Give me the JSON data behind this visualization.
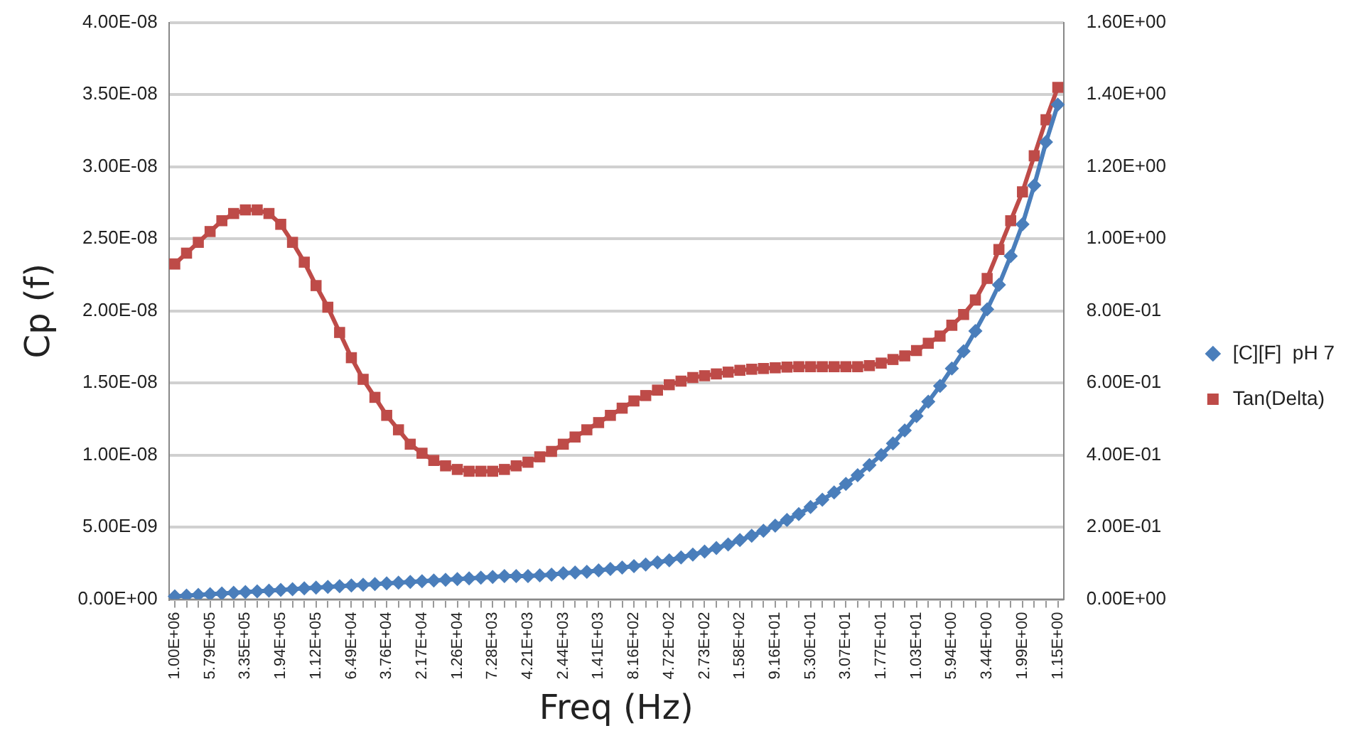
{
  "chart_data": {
    "type": "line",
    "xlabel": "Freq (Hz)",
    "ylabel": "Cp (f)",
    "categories": [
      "1.00E+06",
      null,
      null,
      "5.79E+05",
      null,
      null,
      "3.35E+05",
      null,
      null,
      "1.94E+05",
      null,
      null,
      "1.12E+05",
      null,
      null,
      "6.49E+04",
      null,
      null,
      "3.76E+04",
      null,
      null,
      "2.17E+04",
      null,
      null,
      "1.26E+04",
      null,
      null,
      "7.28E+03",
      null,
      null,
      "4.21E+03",
      null,
      null,
      "2.44E+03",
      null,
      null,
      "1.41E+03",
      null,
      null,
      "8.16E+02",
      null,
      null,
      "4.72E+02",
      null,
      null,
      "2.73E+02",
      null,
      null,
      "1.58E+02",
      null,
      null,
      "9.16E+01",
      null,
      null,
      "5.30E+01",
      null,
      null,
      "3.07E+01",
      null,
      null,
      "1.77E+01",
      null,
      null,
      "1.03E+01",
      null,
      null,
      "5.94E+00",
      null,
      null,
      "3.44E+00",
      null,
      null,
      "1.99E+00",
      null,
      null,
      "1.15E+00"
    ],
    "series": [
      {
        "name": "[C][F]  pH 7",
        "color": "#4a7ebb",
        "marker": "diamond",
        "values": [
          2e-10,
          2.5e-10,
          3e-10,
          3.5e-10,
          4e-10,
          4.5e-10,
          5e-10,
          5.5e-10,
          6e-10,
          6.5e-10,
          7e-10,
          7.5e-10,
          8e-10,
          8.5e-10,
          9e-10,
          9.5e-10,
          1e-09,
          1.05e-09,
          1.1e-09,
          1.15e-09,
          1.2e-09,
          1.25e-09,
          1.3e-09,
          1.35e-09,
          1.4e-09,
          1.45e-09,
          1.5e-09,
          1.55e-09,
          1.6e-09,
          1.6e-09,
          1.6e-09,
          1.65e-09,
          1.7e-09,
          1.8e-09,
          1.85e-09,
          1.9e-09,
          2e-09,
          2.1e-09,
          2.2e-09,
          2.3e-09,
          2.4e-09,
          2.55e-09,
          2.7e-09,
          2.9e-09,
          3.1e-09,
          3.3e-09,
          3.55e-09,
          3.8e-09,
          4.1e-09,
          4.4e-09,
          4.75e-09,
          5.1e-09,
          5.5e-09,
          5.9e-09,
          6.4e-09,
          6.9e-09,
          7.4e-09,
          8e-09,
          8.6e-09,
          9.3e-09,
          1e-08,
          1.08e-08,
          1.17e-08,
          1.27e-08,
          1.37e-08,
          1.48e-08,
          1.6e-08,
          1.72e-08,
          1.86e-08,
          2.01e-08,
          2.18e-08,
          2.38e-08,
          2.6e-08,
          2.87e-08,
          3.17e-08,
          3.43e-08
        ]
      },
      {
        "name": "Tan(Delta)",
        "color": "#be4b48",
        "marker": "square",
        "axis": "y2",
        "values": [
          0.93,
          0.96,
          0.99,
          1.02,
          1.05,
          1.07,
          1.08,
          1.08,
          1.07,
          1.04,
          0.99,
          0.935,
          0.87,
          0.81,
          0.74,
          0.67,
          0.61,
          0.56,
          0.51,
          0.47,
          0.43,
          0.405,
          0.385,
          0.37,
          0.36,
          0.355,
          0.355,
          0.355,
          0.36,
          0.37,
          0.38,
          0.395,
          0.41,
          0.43,
          0.45,
          0.47,
          0.49,
          0.51,
          0.53,
          0.55,
          0.565,
          0.58,
          0.595,
          0.605,
          0.615,
          0.62,
          0.625,
          0.63,
          0.635,
          0.638,
          0.64,
          0.642,
          0.644,
          0.645,
          0.645,
          0.645,
          0.645,
          0.645,
          0.645,
          0.648,
          0.655,
          0.665,
          0.675,
          0.69,
          0.71,
          0.73,
          0.76,
          0.79,
          0.83,
          0.89,
          0.97,
          1.05,
          1.13,
          1.23,
          1.33,
          1.42
        ]
      }
    ],
    "ylim": [
      0,
      4e-08
    ],
    "yticks": [
      {
        "value": 0,
        "label": "0.00E+00"
      },
      {
        "value": 5e-09,
        "label": "5.00E-09"
      },
      {
        "value": 1e-08,
        "label": "1.00E-08"
      },
      {
        "value": 1.5e-08,
        "label": "1.50E-08"
      },
      {
        "value": 2e-08,
        "label": "2.00E-08"
      },
      {
        "value": 2.5e-08,
        "label": "2.50E-08"
      },
      {
        "value": 3e-08,
        "label": "3.00E-08"
      },
      {
        "value": 3.5e-08,
        "label": "3.50E-08"
      },
      {
        "value": 4e-08,
        "label": "4.00E-08"
      }
    ],
    "y2lim": [
      0,
      1.6
    ],
    "y2ticks": [
      {
        "value": 0,
        "label": "0.00E+00"
      },
      {
        "value": 0.2,
        "label": "2.00E-01"
      },
      {
        "value": 0.4,
        "label": "4.00E-01"
      },
      {
        "value": 0.6,
        "label": "6.00E-01"
      },
      {
        "value": 0.8,
        "label": "8.00E-01"
      },
      {
        "value": 1.0,
        "label": "1.00E+00"
      },
      {
        "value": 1.2,
        "label": "1.20E+00"
      },
      {
        "value": 1.4,
        "label": "1.40E+00"
      },
      {
        "value": 1.6,
        "label": "1.60E+00"
      }
    ],
    "grid": "y",
    "legend": "right"
  }
}
